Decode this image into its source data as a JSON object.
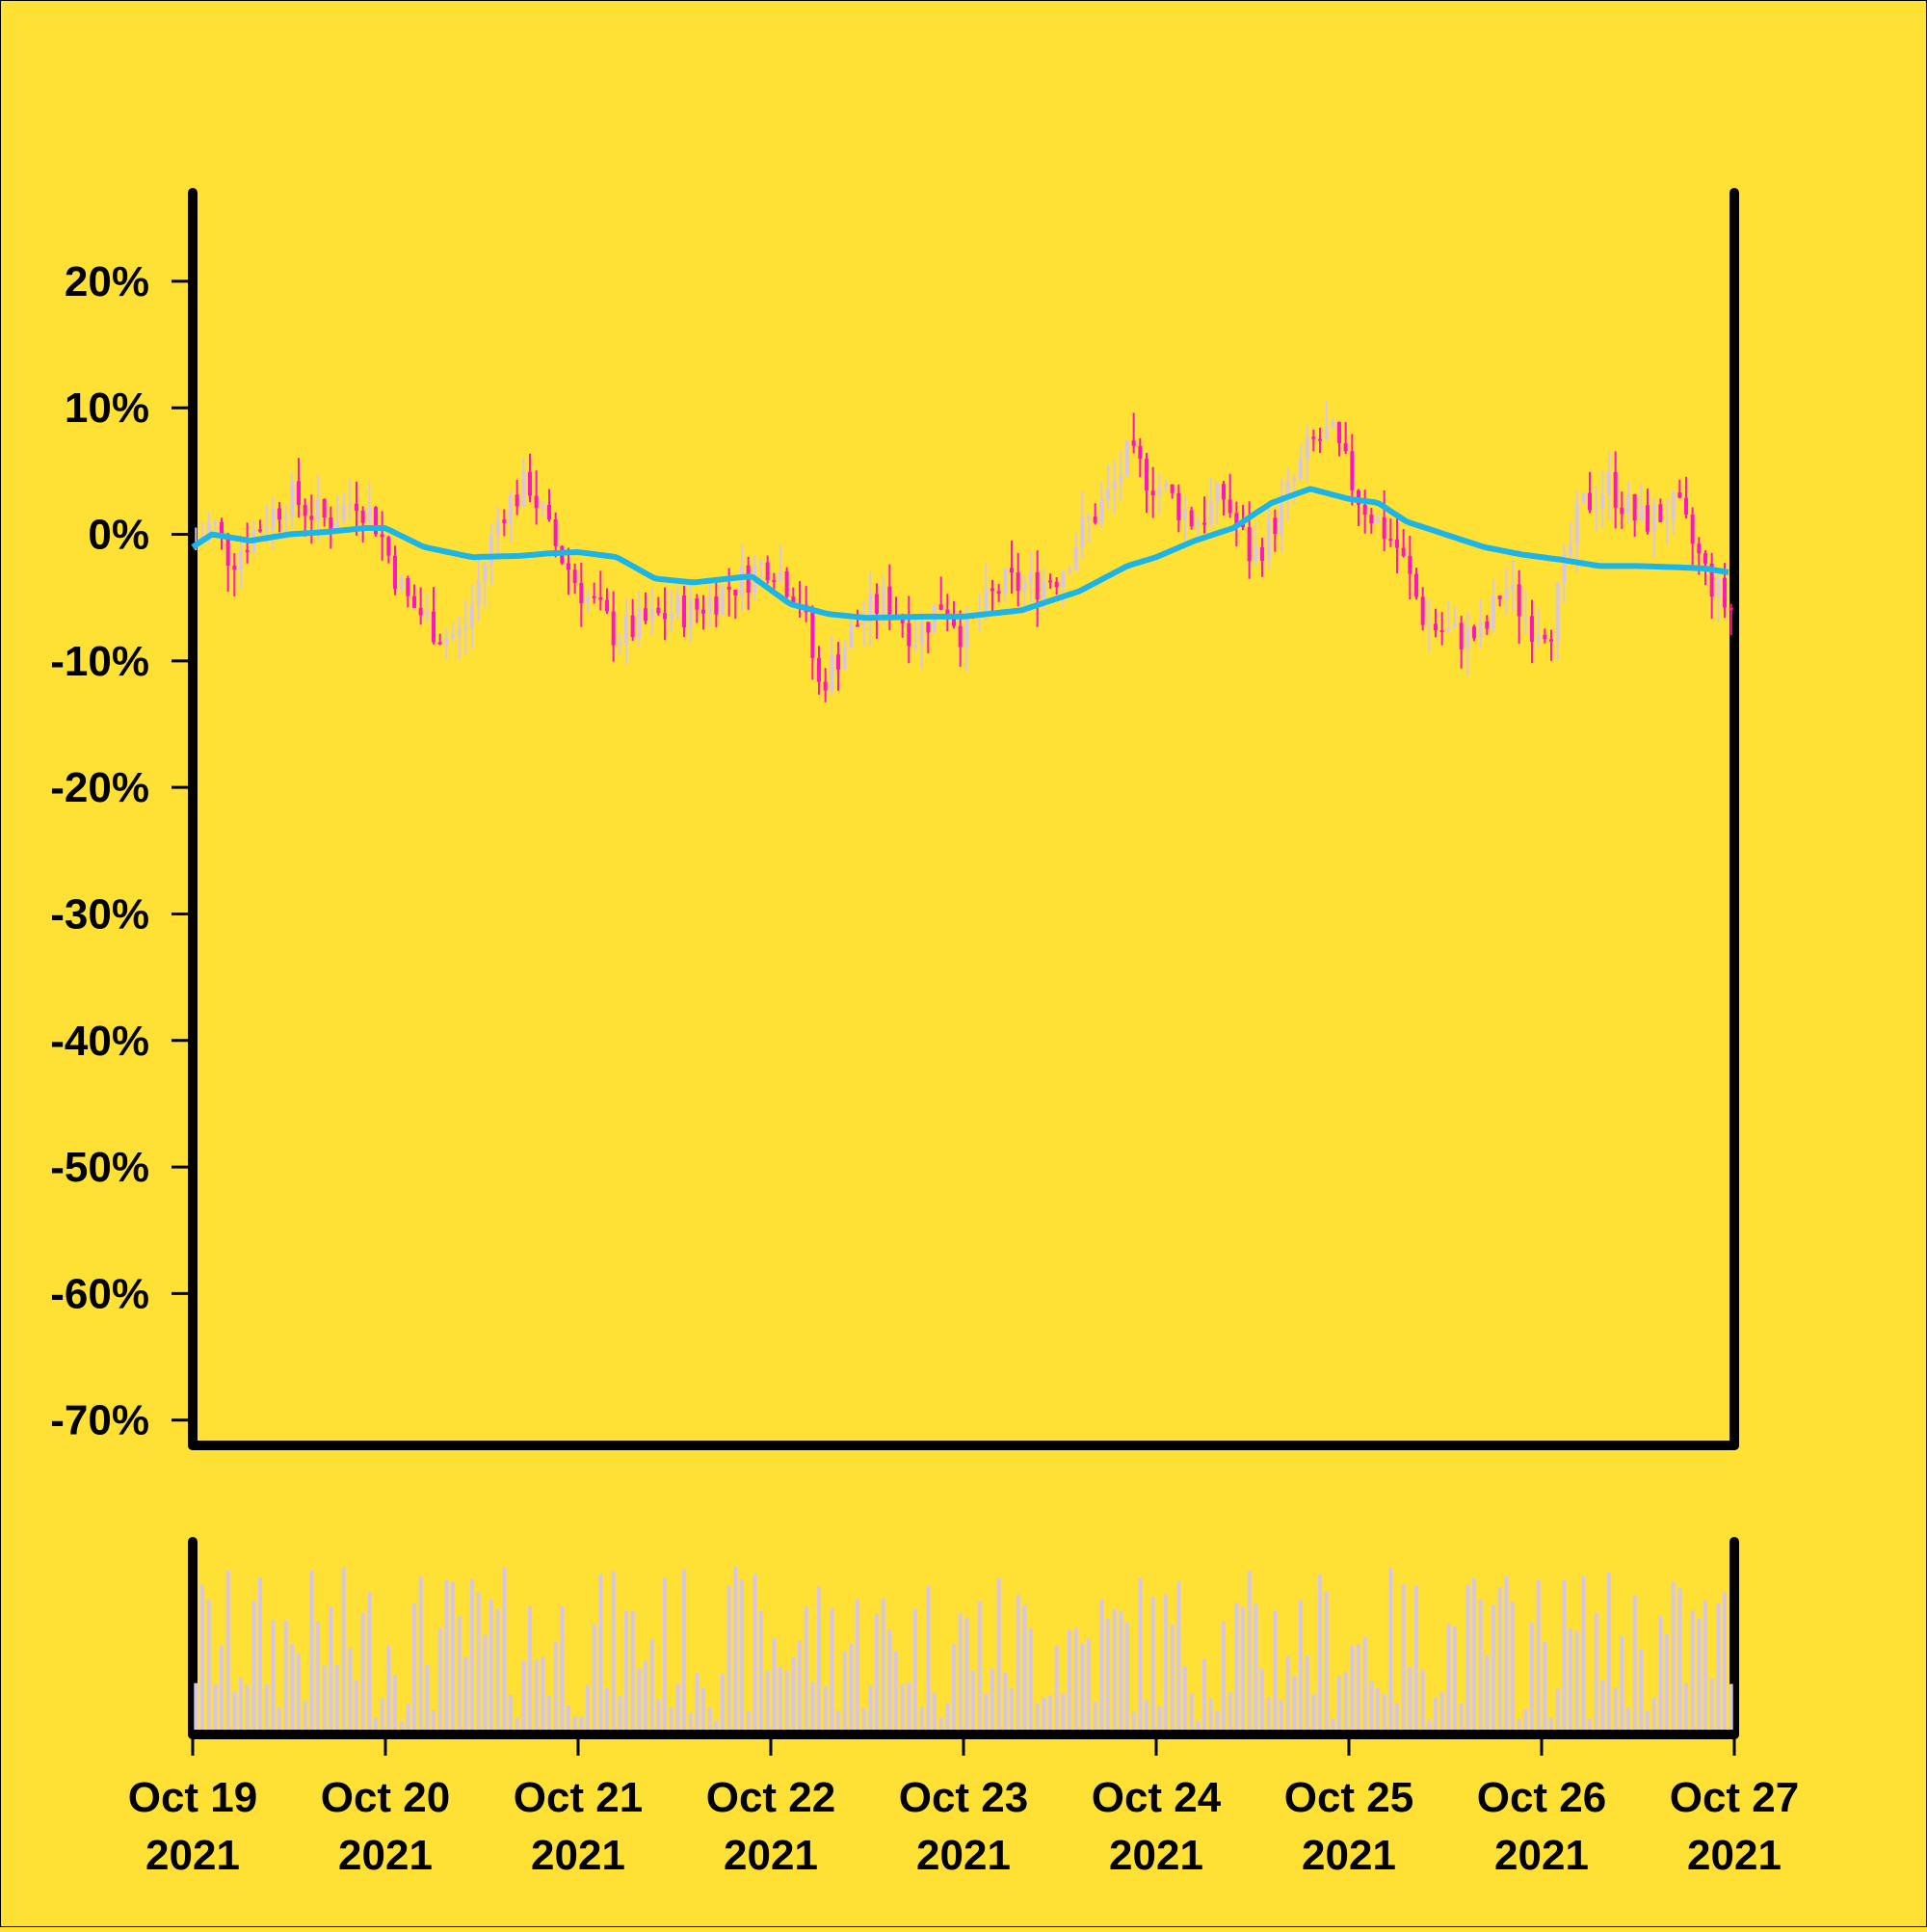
{
  "chart_data": {
    "type": "candlestick",
    "title": "",
    "xlabel": "",
    "ylabel": "",
    "background_color": "#FFE135",
    "colors": {
      "up_candle": "#D8C6E8",
      "down_candle": "#FF14C8",
      "moving_average": "#1BB5E8",
      "volume": "#D8C6E8",
      "axes": "#000000"
    },
    "price_panel": {
      "ylim": [
        -72,
        27
      ],
      "yticks": [
        20,
        10,
        0,
        -10,
        -20,
        -30,
        -40,
        -50,
        -60,
        -70
      ],
      "ytick_labels": [
        "20%",
        "10%",
        "0%",
        "-10%",
        "-20%",
        "-30%",
        "-40%",
        "-50%",
        "-60%",
        "-70%"
      ],
      "y_unit": "percent change"
    },
    "x_axis": {
      "start": "2021-10-19",
      "end": "2021-10-27",
      "ticks": [
        {
          "date": "2021-10-19",
          "line1": "Oct 19",
          "line2": "2021"
        },
        {
          "date": "2021-10-20",
          "line1": "Oct 20",
          "line2": "2021"
        },
        {
          "date": "2021-10-21",
          "line1": "Oct 21",
          "line2": "2021"
        },
        {
          "date": "2021-10-22",
          "line1": "Oct 22",
          "line2": "2021"
        },
        {
          "date": "2021-10-23",
          "line1": "Oct 23",
          "line2": "2021"
        },
        {
          "date": "2021-10-24",
          "line1": "Oct 24",
          "line2": "2021"
        },
        {
          "date": "2021-10-25",
          "line1": "Oct 25",
          "line2": "2021"
        },
        {
          "date": "2021-10-26",
          "line1": "Oct 26",
          "line2": "2021"
        },
        {
          "date": "2021-10-27",
          "line1": "Oct 27",
          "line2": "2021"
        }
      ]
    },
    "close_path": {
      "description_units": "days since Oct 19 00:00 vs percent change (approximate anchors)",
      "day": [
        0,
        0.1,
        0.2,
        0.3,
        0.5,
        0.7,
        0.85,
        0.95,
        1.1,
        1.3,
        1.4,
        1.6,
        1.75,
        1.85,
        2.0,
        2.2,
        2.35,
        2.5,
        2.6,
        2.8,
        3.0,
        3.15,
        3.25,
        3.45,
        3.6,
        3.75,
        3.9,
        4.0,
        4.2,
        4.35,
        4.5,
        4.6,
        4.75,
        4.85,
        5.0,
        5.2,
        5.35,
        5.5,
        5.65,
        5.8,
        5.9,
        6.05,
        6.25,
        6.4,
        6.55,
        6.7,
        6.8,
        6.95,
        7.05,
        7.2,
        7.35,
        7.5,
        7.7,
        7.85,
        7.97
      ],
      "pct": [
        -1,
        1,
        -2,
        0,
        3,
        1,
        3,
        1,
        -5,
        -8,
        -8,
        2,
        4,
        0,
        -4,
        -8,
        -7,
        -6,
        -6,
        -4,
        -2,
        -5,
        -12,
        -7,
        -5,
        -8,
        -5,
        -8,
        -4,
        -4,
        -3,
        0,
        3,
        6,
        4,
        1,
        3,
        -2,
        2,
        7,
        8,
        3,
        -1,
        -7,
        -8,
        -8,
        -4,
        -7,
        -7,
        2,
        4,
        1,
        2,
        -3,
        -6
      ]
    },
    "moving_average_path": {
      "day": [
        0,
        0.1,
        0.3,
        0.5,
        0.7,
        0.9,
        1.0,
        1.2,
        1.45,
        1.7,
        1.85,
        2.0,
        2.2,
        2.4,
        2.6,
        2.9,
        3.1,
        3.3,
        3.5,
        3.8,
        4.0,
        4.3,
        4.6,
        4.85,
        5.0,
        5.2,
        5.4,
        5.6,
        5.8,
        6.0,
        6.15,
        6.3,
        6.5,
        6.7,
        6.9,
        7.1,
        7.3,
        7.5,
        7.7,
        7.85,
        7.97
      ],
      "pct": [
        -1,
        0,
        -0.5,
        0,
        0.2,
        0.5,
        0.5,
        -1,
        -1.8,
        -1.7,
        -1.5,
        -1.4,
        -1.8,
        -3.5,
        -3.8,
        -3.3,
        -5.5,
        -6.3,
        -6.6,
        -6.5,
        -6.5,
        -6.0,
        -4.5,
        -2.5,
        -1.8,
        -0.5,
        0.5,
        2.5,
        3.6,
        2.8,
        2.5,
        1.0,
        0.0,
        -1.0,
        -1.6,
        -2.0,
        -2.5,
        -2.5,
        -2.6,
        -2.7,
        -3.0
      ]
    },
    "candle_count": 240,
    "volume_panel": {
      "description": "relative volume bars, one per candle, no axis labels",
      "max_relative": 1.0
    }
  }
}
